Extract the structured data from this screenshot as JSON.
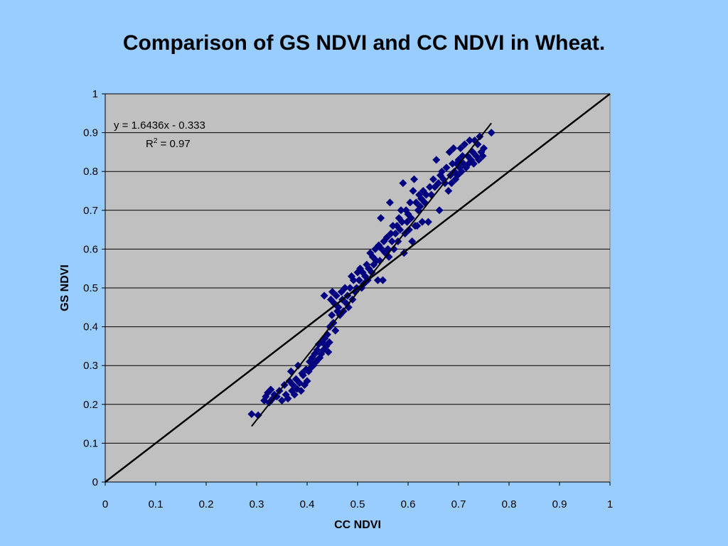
{
  "slide": {
    "title": "Comparison of GS NDVI and CC NDVI in Wheat."
  },
  "chart_data": {
    "type": "scatter",
    "xlabel": "CC NDVI",
    "ylabel": "GS NDVI",
    "xlim": [
      0,
      1
    ],
    "ylim": [
      0,
      1
    ],
    "xticks": [
      "0",
      "0.1",
      "0.2",
      "0.3",
      "0.4",
      "0.5",
      "0.6",
      "0.7",
      "0.8",
      "0.9",
      "1"
    ],
    "yticks": [
      "0",
      "0.1",
      "0.2",
      "0.3",
      "0.4",
      "0.5",
      "0.6",
      "0.7",
      "0.8",
      "0.9",
      "1"
    ],
    "grid": "horizontal",
    "plot_background": "#c0c0c0",
    "marker_color": "#000080",
    "marker": "diamond",
    "trendline": {
      "equation": "y = 1.6436x - 0.333",
      "r2_prefix": "R",
      "r2_sup": "2",
      "r2_suffix": " = 0.97",
      "slope": 1.6436,
      "intercept": -0.333,
      "x_range": [
        0.29,
        0.765
      ]
    },
    "reference_line": {
      "slope": 1,
      "intercept": 0,
      "x_range": [
        0,
        1
      ]
    },
    "points": [
      [
        0.29,
        0.175
      ],
      [
        0.303,
        0.172
      ],
      [
        0.315,
        0.21
      ],
      [
        0.318,
        0.22
      ],
      [
        0.322,
        0.23
      ],
      [
        0.325,
        0.205
      ],
      [
        0.328,
        0.238
      ],
      [
        0.332,
        0.215
      ],
      [
        0.335,
        0.225
      ],
      [
        0.34,
        0.22
      ],
      [
        0.345,
        0.235
      ],
      [
        0.35,
        0.21
      ],
      [
        0.355,
        0.25
      ],
      [
        0.358,
        0.225
      ],
      [
        0.362,
        0.215
      ],
      [
        0.365,
        0.26
      ],
      [
        0.368,
        0.285
      ],
      [
        0.37,
        0.235
      ],
      [
        0.372,
        0.25
      ],
      [
        0.375,
        0.225
      ],
      [
        0.378,
        0.265
      ],
      [
        0.38,
        0.24
      ],
      [
        0.382,
        0.3
      ],
      [
        0.385,
        0.255
      ],
      [
        0.388,
        0.235
      ],
      [
        0.39,
        0.28
      ],
      [
        0.392,
        0.275
      ],
      [
        0.395,
        0.25
      ],
      [
        0.398,
        0.29
      ],
      [
        0.4,
        0.26
      ],
      [
        0.403,
        0.285
      ],
      [
        0.405,
        0.31
      ],
      [
        0.408,
        0.295
      ],
      [
        0.41,
        0.32
      ],
      [
        0.412,
        0.3
      ],
      [
        0.415,
        0.33
      ],
      [
        0.418,
        0.31
      ],
      [
        0.42,
        0.34
      ],
      [
        0.423,
        0.355
      ],
      [
        0.425,
        0.32
      ],
      [
        0.428,
        0.33
      ],
      [
        0.43,
        0.36
      ],
      [
        0.432,
        0.34
      ],
      [
        0.434,
        0.48
      ],
      [
        0.435,
        0.37
      ],
      [
        0.438,
        0.35
      ],
      [
        0.44,
        0.38
      ],
      [
        0.442,
        0.335
      ],
      [
        0.444,
        0.36
      ],
      [
        0.445,
        0.4
      ],
      [
        0.447,
        0.47
      ],
      [
        0.449,
        0.43
      ],
      [
        0.45,
        0.49
      ],
      [
        0.452,
        0.41
      ],
      [
        0.454,
        0.46
      ],
      [
        0.456,
        0.39
      ],
      [
        0.458,
        0.48
      ],
      [
        0.46,
        0.44
      ],
      [
        0.462,
        0.45
      ],
      [
        0.465,
        0.43
      ],
      [
        0.468,
        0.49
      ],
      [
        0.47,
        0.47
      ],
      [
        0.472,
        0.44
      ],
      [
        0.475,
        0.5
      ],
      [
        0.478,
        0.46
      ],
      [
        0.48,
        0.48
      ],
      [
        0.482,
        0.45
      ],
      [
        0.485,
        0.5
      ],
      [
        0.488,
        0.53
      ],
      [
        0.49,
        0.47
      ],
      [
        0.492,
        0.52
      ],
      [
        0.495,
        0.49
      ],
      [
        0.498,
        0.5
      ],
      [
        0.5,
        0.54
      ],
      [
        0.503,
        0.52
      ],
      [
        0.505,
        0.55
      ],
      [
        0.508,
        0.5
      ],
      [
        0.51,
        0.54
      ],
      [
        0.512,
        0.51
      ],
      [
        0.515,
        0.53
      ],
      [
        0.518,
        0.56
      ],
      [
        0.52,
        0.52
      ],
      [
        0.522,
        0.55
      ],
      [
        0.525,
        0.59
      ],
      [
        0.528,
        0.54
      ],
      [
        0.53,
        0.58
      ],
      [
        0.532,
        0.56
      ],
      [
        0.535,
        0.6
      ],
      [
        0.537,
        0.57
      ],
      [
        0.54,
        0.52
      ],
      [
        0.542,
        0.61
      ],
      [
        0.544,
        0.57
      ],
      [
        0.546,
        0.68
      ],
      [
        0.548,
        0.6
      ],
      [
        0.55,
        0.52
      ],
      [
        0.552,
        0.62
      ],
      [
        0.555,
        0.59
      ],
      [
        0.558,
        0.63
      ],
      [
        0.56,
        0.6
      ],
      [
        0.562,
        0.58
      ],
      [
        0.564,
        0.72
      ],
      [
        0.566,
        0.64
      ],
      [
        0.568,
        0.62
      ],
      [
        0.57,
        0.66
      ],
      [
        0.572,
        0.6
      ],
      [
        0.575,
        0.64
      ],
      [
        0.578,
        0.66
      ],
      [
        0.58,
        0.62
      ],
      [
        0.582,
        0.68
      ],
      [
        0.584,
        0.65
      ],
      [
        0.586,
        0.7
      ],
      [
        0.588,
        0.67
      ],
      [
        0.59,
        0.77
      ],
      [
        0.592,
        0.59
      ],
      [
        0.594,
        0.64
      ],
      [
        0.596,
        0.7
      ],
      [
        0.598,
        0.67
      ],
      [
        0.6,
        0.69
      ],
      [
        0.602,
        0.65
      ],
      [
        0.604,
        0.72
      ],
      [
        0.606,
        0.68
      ],
      [
        0.608,
        0.62
      ],
      [
        0.61,
        0.75
      ],
      [
        0.612,
        0.78
      ],
      [
        0.614,
        0.66
      ],
      [
        0.616,
        0.72
      ],
      [
        0.618,
        0.66
      ],
      [
        0.62,
        0.7
      ],
      [
        0.622,
        0.74
      ],
      [
        0.624,
        0.71
      ],
      [
        0.626,
        0.73
      ],
      [
        0.628,
        0.67
      ],
      [
        0.63,
        0.75
      ],
      [
        0.633,
        0.72
      ],
      [
        0.636,
        0.74
      ],
      [
        0.64,
        0.67
      ],
      [
        0.643,
        0.76
      ],
      [
        0.646,
        0.74
      ],
      [
        0.65,
        0.78
      ],
      [
        0.653,
        0.76
      ],
      [
        0.656,
        0.83
      ],
      [
        0.66,
        0.77
      ],
      [
        0.662,
        0.7
      ],
      [
        0.664,
        0.79
      ],
      [
        0.667,
        0.8
      ],
      [
        0.67,
        0.78
      ],
      [
        0.673,
        0.77
      ],
      [
        0.676,
        0.81
      ],
      [
        0.68,
        0.75
      ],
      [
        0.682,
        0.85
      ],
      [
        0.684,
        0.79
      ],
      [
        0.686,
        0.77
      ],
      [
        0.688,
        0.82
      ],
      [
        0.69,
        0.86
      ],
      [
        0.692,
        0.8
      ],
      [
        0.694,
        0.78
      ],
      [
        0.696,
        0.82
      ],
      [
        0.698,
        0.79
      ],
      [
        0.7,
        0.83
      ],
      [
        0.702,
        0.81
      ],
      [
        0.704,
        0.86
      ],
      [
        0.706,
        0.8
      ],
      [
        0.708,
        0.84
      ],
      [
        0.71,
        0.82
      ],
      [
        0.712,
        0.87
      ],
      [
        0.715,
        0.81
      ],
      [
        0.718,
        0.84
      ],
      [
        0.72,
        0.82
      ],
      [
        0.722,
        0.88
      ],
      [
        0.725,
        0.83
      ],
      [
        0.728,
        0.85
      ],
      [
        0.73,
        0.82
      ],
      [
        0.732,
        0.88
      ],
      [
        0.735,
        0.84
      ],
      [
        0.738,
        0.87
      ],
      [
        0.74,
        0.83
      ],
      [
        0.742,
        0.89
      ],
      [
        0.745,
        0.85
      ],
      [
        0.748,
        0.84
      ],
      [
        0.75,
        0.86
      ],
      [
        0.765,
        0.9
      ]
    ]
  }
}
